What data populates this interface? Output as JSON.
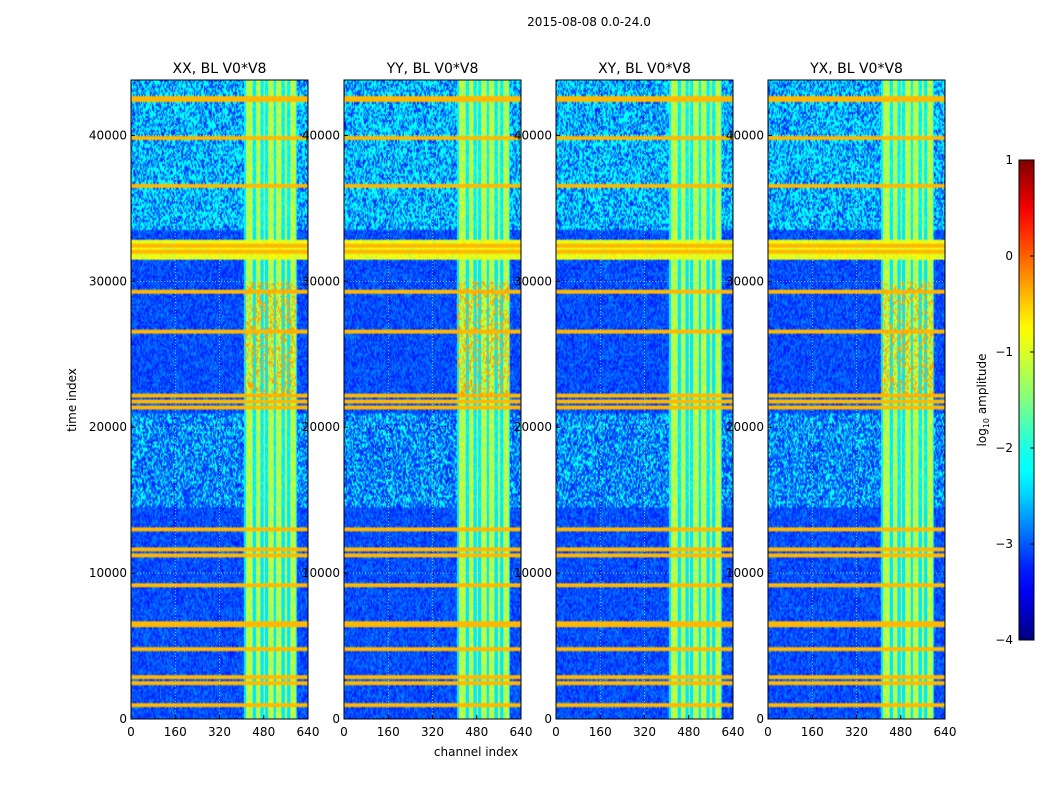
{
  "figure": {
    "title": "2015-08-08 0.0-24.0",
    "xlabel": "channel index",
    "ylabel": "time index"
  },
  "chart_data": {
    "type": "heatmap",
    "x": {
      "label": "channel index",
      "range": [
        0,
        640
      ],
      "ticks": [
        0,
        160,
        320,
        480,
        640
      ]
    },
    "y": {
      "label": "time index",
      "range": [
        0,
        43800
      ],
      "ticks": [
        0,
        10000,
        20000,
        30000,
        40000
      ]
    },
    "colorbar": {
      "label": "log",
      "label_sub": "10",
      "label_rest": " amplitude",
      "range": [
        -4,
        1
      ],
      "ticks": [
        1,
        0,
        -1,
        -2,
        -3,
        -4
      ],
      "tick_labels": [
        "1",
        "0",
        "−1",
        "−2",
        "−3",
        "−4"
      ],
      "colormap": "jet"
    },
    "panels": [
      {
        "title": "XX, BL V0*V8",
        "polarization": "XX"
      },
      {
        "title": "YY, BL V0*V8",
        "polarization": "YY"
      },
      {
        "title": "XY, BL V0*V8",
        "polarization": "XY"
      },
      {
        "title": "YX, BL V0*V8",
        "polarization": "YX"
      }
    ],
    "features": {
      "bright_channel_band": [
        410,
        600
      ],
      "bright_channel_lines": [
        410,
        445,
        475,
        490,
        520,
        550,
        570,
        600
      ],
      "bright_time_band": [
        31500,
        32800
      ],
      "rfi_time_rows": [
        900,
        2400,
        2900,
        4800,
        6500,
        9200,
        11200,
        11600,
        13000,
        21400,
        21800,
        22200,
        26500,
        29300,
        32000,
        32400,
        36500,
        39800,
        42500
      ]
    }
  }
}
